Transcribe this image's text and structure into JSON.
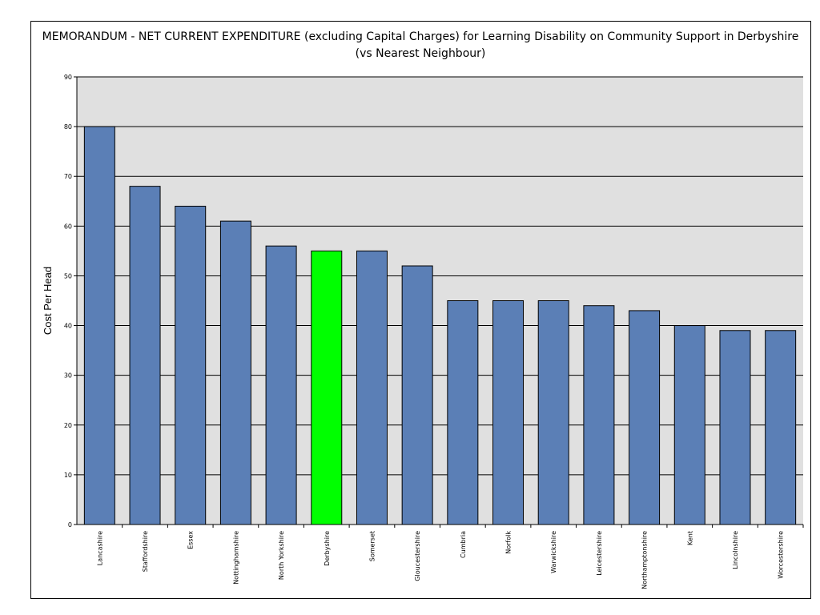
{
  "chart_data": {
    "type": "bar",
    "title": "MEMORANDUM - NET CURRENT EXPENDITURE (excluding Capital Charges) for Learning Disability on Community Support in Derbyshire (vs Nearest Neighbour)",
    "xlabel": "",
    "ylabel": "Cost Per Head",
    "ylim": [
      0,
      90
    ],
    "yticks": [
      0,
      10,
      20,
      30,
      40,
      50,
      60,
      70,
      80,
      90
    ],
    "grid": true,
    "legend": "none",
    "categories": [
      "Lancashire",
      "Staffordshire",
      "Essex",
      "Nottinghamshire",
      "North Yorkshire",
      "Derbyshire",
      "Somerset",
      "Gloucestershire",
      "Cumbria",
      "Norfolk",
      "Warwickshire",
      "Leicestershire",
      "Northamptonshire",
      "Kent",
      "Lincolnshire",
      "Worcestershire"
    ],
    "values": [
      80,
      68,
      64,
      61,
      56,
      55,
      55,
      52,
      45,
      45,
      45,
      44,
      43,
      40,
      39,
      39
    ],
    "highlight": "Derbyshire",
    "colors": {
      "bar": "#5b7fb6",
      "highlight": "#00ff00",
      "plot_background": "#e0e0e0",
      "grid": "#000000"
    }
  }
}
